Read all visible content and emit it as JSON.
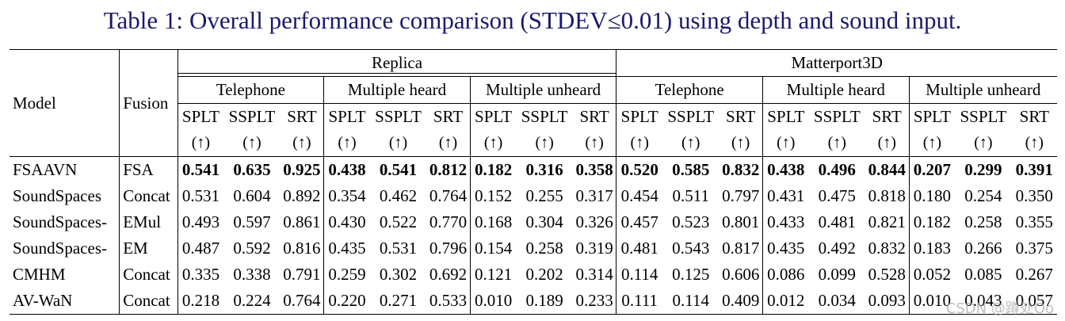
{
  "caption": {
    "label": "Table 1:",
    "text": "Overall performance comparison (STDEV≤0.01) using depth and sound input."
  },
  "header": {
    "model": "Model",
    "fusion": "Fusion",
    "datasets": [
      "Replica",
      "Matterport3D"
    ],
    "scenarios": [
      "Telephone",
      "Multiple heard",
      "Multiple unheard",
      "Telephone",
      "Multiple heard",
      "Multiple unheard"
    ],
    "metrics": [
      "SPLT",
      "SSPLT",
      "SRT"
    ],
    "arrow": "(↑)"
  },
  "rows": [
    {
      "model": "FSAAVN",
      "fusion": "FSA",
      "bold": true,
      "values": [
        "0.541",
        "0.635",
        "0.925",
        "0.438",
        "0.541",
        "0.812",
        "0.182",
        "0.316",
        "0.358",
        "0.520",
        "0.585",
        "0.832",
        "0.438",
        "0.496",
        "0.844",
        "0.207",
        "0.299",
        "0.391"
      ]
    },
    {
      "model": "SoundSpaces",
      "fusion": "Concat",
      "bold": false,
      "values": [
        "0.531",
        "0.604",
        "0.892",
        "0.354",
        "0.462",
        "0.764",
        "0.152",
        "0.255",
        "0.317",
        "0.454",
        "0.511",
        "0.797",
        "0.431",
        "0.475",
        "0.818",
        "0.180",
        "0.254",
        "0.350"
      ]
    },
    {
      "model": "SoundSpaces-",
      "fusion": "EMul",
      "bold": false,
      "values": [
        "0.493",
        "0.597",
        "0.861",
        "0.430",
        "0.522",
        "0.770",
        "0.168",
        "0.304",
        "0.326",
        "0.457",
        "0.523",
        "0.801",
        "0.433",
        "0.481",
        "0.821",
        "0.182",
        "0.258",
        "0.355"
      ]
    },
    {
      "model": "SoundSpaces-",
      "fusion": "EM",
      "bold": false,
      "values": [
        "0.487",
        "0.592",
        "0.816",
        "0.435",
        "0.531",
        "0.796",
        "0.154",
        "0.258",
        "0.319",
        "0.481",
        "0.543",
        "0.817",
        "0.435",
        "0.492",
        "0.832",
        "0.183",
        "0.266",
        "0.375"
      ]
    },
    {
      "model": "CMHM",
      "fusion": "Concat",
      "bold": false,
      "values": [
        "0.335",
        "0.338",
        "0.791",
        "0.259",
        "0.302",
        "0.692",
        "0.121",
        "0.202",
        "0.314",
        "0.114",
        "0.125",
        "0.606",
        "0.086",
        "0.099",
        "0.528",
        "0.052",
        "0.085",
        "0.267"
      ]
    },
    {
      "model": "AV-WaN",
      "fusion": "Concat",
      "bold": false,
      "values": [
        "0.218",
        "0.224",
        "0.764",
        "0.220",
        "0.271",
        "0.533",
        "0.010",
        "0.189",
        "0.233",
        "0.111",
        "0.114",
        "0.409",
        "0.012",
        "0.034",
        "0.093",
        "0.010",
        "0.043",
        "0.057"
      ]
    }
  ],
  "watermark": "CSDN @蹲处Oo"
}
